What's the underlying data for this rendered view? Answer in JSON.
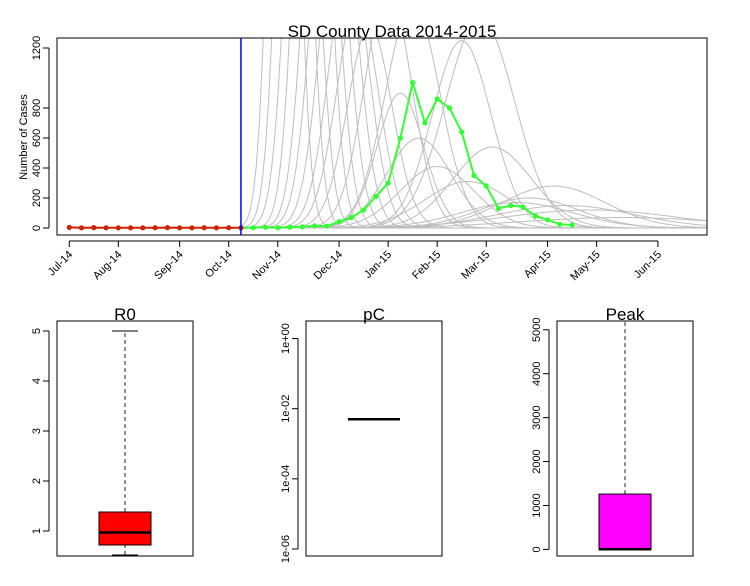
{
  "chart_data": [
    {
      "type": "line",
      "title": "SD County Data 2014-2015",
      "ylabel": "Number of Cases",
      "xlabel": "",
      "ylim": [
        0,
        1200
      ],
      "yticks": [
        "0",
        "200",
        "400",
        "600",
        "800",
        "1200"
      ],
      "xlim": [
        0,
        53
      ],
      "month_ticks": [
        {
          "label": "Jul-14",
          "x": 1
        },
        {
          "label": "Aug-14",
          "x": 5
        },
        {
          "label": "Sep-14",
          "x": 10
        },
        {
          "label": "Oct-14",
          "x": 14
        },
        {
          "label": "Nov-14",
          "x": 18
        },
        {
          "label": "Dec-14",
          "x": 23
        },
        {
          "label": "Jan-15",
          "x": 27
        },
        {
          "label": "Feb-15",
          "x": 31
        },
        {
          "label": "Mar-15",
          "x": 35
        },
        {
          "label": "Apr-15",
          "x": 40
        },
        {
          "label": "May-15",
          "x": 44
        },
        {
          "label": "Jun-15",
          "x": 49
        }
      ],
      "vline_x": 15.0,
      "observed_fit": {
        "x": [
          1,
          2,
          3,
          4,
          5,
          6,
          7,
          8,
          9,
          10,
          11,
          12,
          13,
          14,
          15
        ],
        "values": [
          4,
          1,
          3,
          1,
          1,
          1,
          1,
          2,
          3,
          1,
          1,
          2,
          1,
          2,
          1
        ]
      },
      "observed_forecast": {
        "x": [
          15,
          16,
          17,
          18,
          19,
          20,
          21,
          22,
          23,
          24,
          25,
          26,
          27,
          28,
          29,
          30,
          31,
          32,
          33,
          34,
          35,
          36,
          37,
          38,
          39,
          40,
          41,
          42
        ],
        "values": [
          1,
          2,
          5,
          2,
          6,
          8,
          15,
          12,
          42,
          70,
          120,
          210,
          300,
          600,
          970,
          700,
          860,
          800,
          640,
          350,
          280,
          130,
          150,
          140,
          80,
          55,
          25,
          20
        ]
      },
      "simulations": [
        {
          "peak_x": 18.5,
          "peak": 5200,
          "width": 1.0
        },
        {
          "peak_x": 19.3,
          "peak": 4800,
          "width": 1.1
        },
        {
          "peak_x": 20.0,
          "peak": 3500,
          "width": 1.2
        },
        {
          "peak_x": 20.8,
          "peak": 4200,
          "width": 1.2
        },
        {
          "peak_x": 21.5,
          "peak": 3000,
          "width": 1.3
        },
        {
          "peak_x": 22.2,
          "peak": 2600,
          "width": 1.4
        },
        {
          "peak_x": 23.0,
          "peak": 2200,
          "width": 1.5
        },
        {
          "peak_x": 23.8,
          "peak": 1800,
          "width": 1.6
        },
        {
          "peak_x": 24.5,
          "peak": 1500,
          "width": 1.7
        },
        {
          "peak_x": 25.5,
          "peak": 1350,
          "width": 1.8
        },
        {
          "peak_x": 27.0,
          "peak": 1600,
          "width": 1.9
        },
        {
          "peak_x": 28.0,
          "peak": 900,
          "width": 1.9
        },
        {
          "peak_x": 29.0,
          "peak": 1500,
          "width": 2.2
        },
        {
          "peak_x": 29.5,
          "peak": 600,
          "width": 2.6
        },
        {
          "peak_x": 31.0,
          "peak": 410,
          "width": 3.0
        },
        {
          "peak_x": 33.0,
          "peak": 1250,
          "width": 2.4
        },
        {
          "peak_x": 33.5,
          "peak": 310,
          "width": 3.5
        },
        {
          "peak_x": 34.5,
          "peak": 1400,
          "width": 2.8
        },
        {
          "peak_x": 35.5,
          "peak": 540,
          "width": 3.2
        },
        {
          "peak_x": 37.5,
          "peak": 170,
          "width": 4.5
        },
        {
          "peak_x": 38.5,
          "peak": 200,
          "width": 4.0
        },
        {
          "peak_x": 40.5,
          "peak": 280,
          "width": 4.2
        },
        {
          "peak_x": 41.5,
          "peak": 150,
          "width": 5.5
        },
        {
          "peak_x": 43.5,
          "peak": 120,
          "width": 7.0
        },
        {
          "peak_x": 46.0,
          "peak": 70,
          "width": 8.0
        }
      ]
    },
    {
      "type": "box",
      "title": "R0",
      "ylim": [
        0.5,
        5.2
      ],
      "yticks": [
        1,
        2,
        3,
        4,
        5
      ],
      "min": 0.52,
      "q1": 0.72,
      "median": 0.97,
      "q3": 1.38,
      "max": 5.0,
      "fill": "#ff0000"
    },
    {
      "type": "box",
      "title": "pC",
      "scale": "log",
      "ylim_exp": [
        -6,
        0.3
      ],
      "yticks": [
        {
          "exp": 0,
          "label": "1e+00"
        },
        {
          "exp": -2,
          "label": "1e-02"
        },
        {
          "exp": -4,
          "label": "1e-04"
        },
        {
          "exp": -6,
          "label": "1e-06"
        }
      ],
      "median_exp": -2.3
    },
    {
      "type": "box",
      "title": "Peak",
      "ylim": [
        -150,
        5200
      ],
      "yticks": [
        0,
        1000,
        2000,
        3000,
        4000,
        5000
      ],
      "min": 0,
      "q1": 0,
      "median": 5,
      "q3": 1260,
      "max": 5200,
      "fill": "#ff00ff"
    }
  ],
  "colors": {
    "fit": "#cc2200",
    "forecast": "#33ff33",
    "simulations": "#bdbdbd",
    "vline": "#0000ff"
  }
}
